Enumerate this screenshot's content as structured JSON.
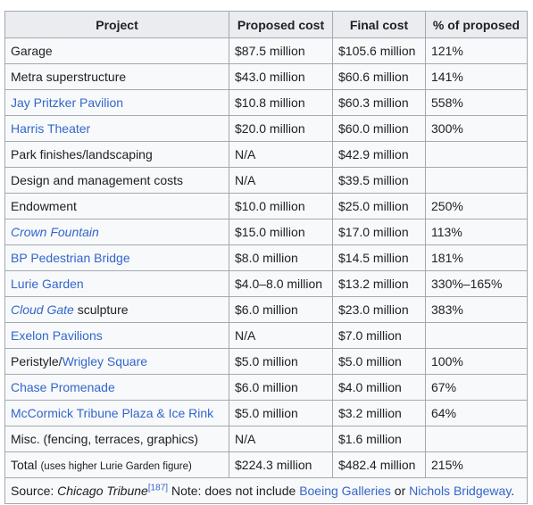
{
  "headers": {
    "project": "Project",
    "proposed": "Proposed cost",
    "final": "Final cost",
    "percent": "% of proposed"
  },
  "rows": [
    {
      "pre": "",
      "link": "",
      "post": "Garage",
      "italic": false,
      "proposed": "$87.5 million",
      "final": "$105.6 million",
      "percent": "121%"
    },
    {
      "pre": "",
      "link": "",
      "post": "Metra superstructure",
      "italic": false,
      "proposed": "$43.0 million",
      "final": "$60.6 million",
      "percent": "141%"
    },
    {
      "pre": "",
      "link": "Jay Pritzker Pavilion",
      "post": "",
      "italic": false,
      "proposed": "$10.8 million",
      "final": "$60.3 million",
      "percent": "558%"
    },
    {
      "pre": "",
      "link": "Harris Theater",
      "post": "",
      "italic": false,
      "proposed": "$20.0 million",
      "final": "$60.0 million",
      "percent": "300%"
    },
    {
      "pre": "",
      "link": "",
      "post": "Park finishes/landscaping",
      "italic": false,
      "proposed": "N/A",
      "final": "$42.9 million",
      "percent": ""
    },
    {
      "pre": "",
      "link": "",
      "post": "Design and management costs",
      "italic": false,
      "proposed": "N/A",
      "final": "$39.5 million",
      "percent": ""
    },
    {
      "pre": "",
      "link": "",
      "post": "Endowment",
      "italic": false,
      "proposed": "$10.0 million",
      "final": "$25.0 million",
      "percent": "250%"
    },
    {
      "pre": "",
      "link": "Crown Fountain",
      "post": "",
      "italic": true,
      "proposed": "$15.0 million",
      "final": "$17.0 million",
      "percent": "113%"
    },
    {
      "pre": "",
      "link": "BP Pedestrian Bridge",
      "post": "",
      "italic": false,
      "proposed": "$8.0 million",
      "final": "$14.5 million",
      "percent": "181%"
    },
    {
      "pre": "",
      "link": "Lurie Garden",
      "post": "",
      "italic": false,
      "proposed": "$4.0–8.0 million",
      "final": "$13.2 million",
      "percent": "330%–165%"
    },
    {
      "pre": "",
      "link": "Cloud Gate",
      "post": " sculpture",
      "italic": true,
      "proposed": "$6.0 million",
      "final": "$23.0 million",
      "percent": "383%"
    },
    {
      "pre": "",
      "link": "Exelon Pavilions",
      "post": "",
      "italic": false,
      "proposed": "N/A",
      "final": "$7.0 million",
      "percent": ""
    },
    {
      "pre": "Peristyle/",
      "link": "Wrigley Square",
      "post": "",
      "italic": false,
      "proposed": "$5.0 million",
      "final": "$5.0 million",
      "percent": "100%"
    },
    {
      "pre": "",
      "link": "Chase Promenade",
      "post": "",
      "italic": false,
      "proposed": "$6.0 million",
      "final": "$4.0 million",
      "percent": "67%"
    },
    {
      "pre": "",
      "link": "McCormick Tribune Plaza & Ice Rink",
      "post": "",
      "italic": false,
      "proposed": "$5.0 million",
      "final": "$3.2 million",
      "percent": "64%"
    },
    {
      "pre": "",
      "link": "",
      "post": "Misc. (fencing, terraces, graphics)",
      "italic": false,
      "proposed": "N/A",
      "final": "$1.6 million",
      "percent": ""
    }
  ],
  "total": {
    "label": "Total",
    "note": "(uses higher Lurie Garden figure)",
    "proposed": "$224.3 million",
    "final": "$482.4 million",
    "percent": "215%"
  },
  "footer": {
    "source_label": "Source: ",
    "source_name": "Chicago Tribune",
    "ref": "[187]",
    "note": " Note: does not include ",
    "link1": "Boeing Galleries",
    "or": " or ",
    "link2": "Nichols Bridgeway",
    "end": "."
  },
  "colors": {
    "link": "#3366cc",
    "header_bg": "#eaecf0",
    "cell_bg": "#f8f9fa",
    "border": "#a2a9b1"
  }
}
